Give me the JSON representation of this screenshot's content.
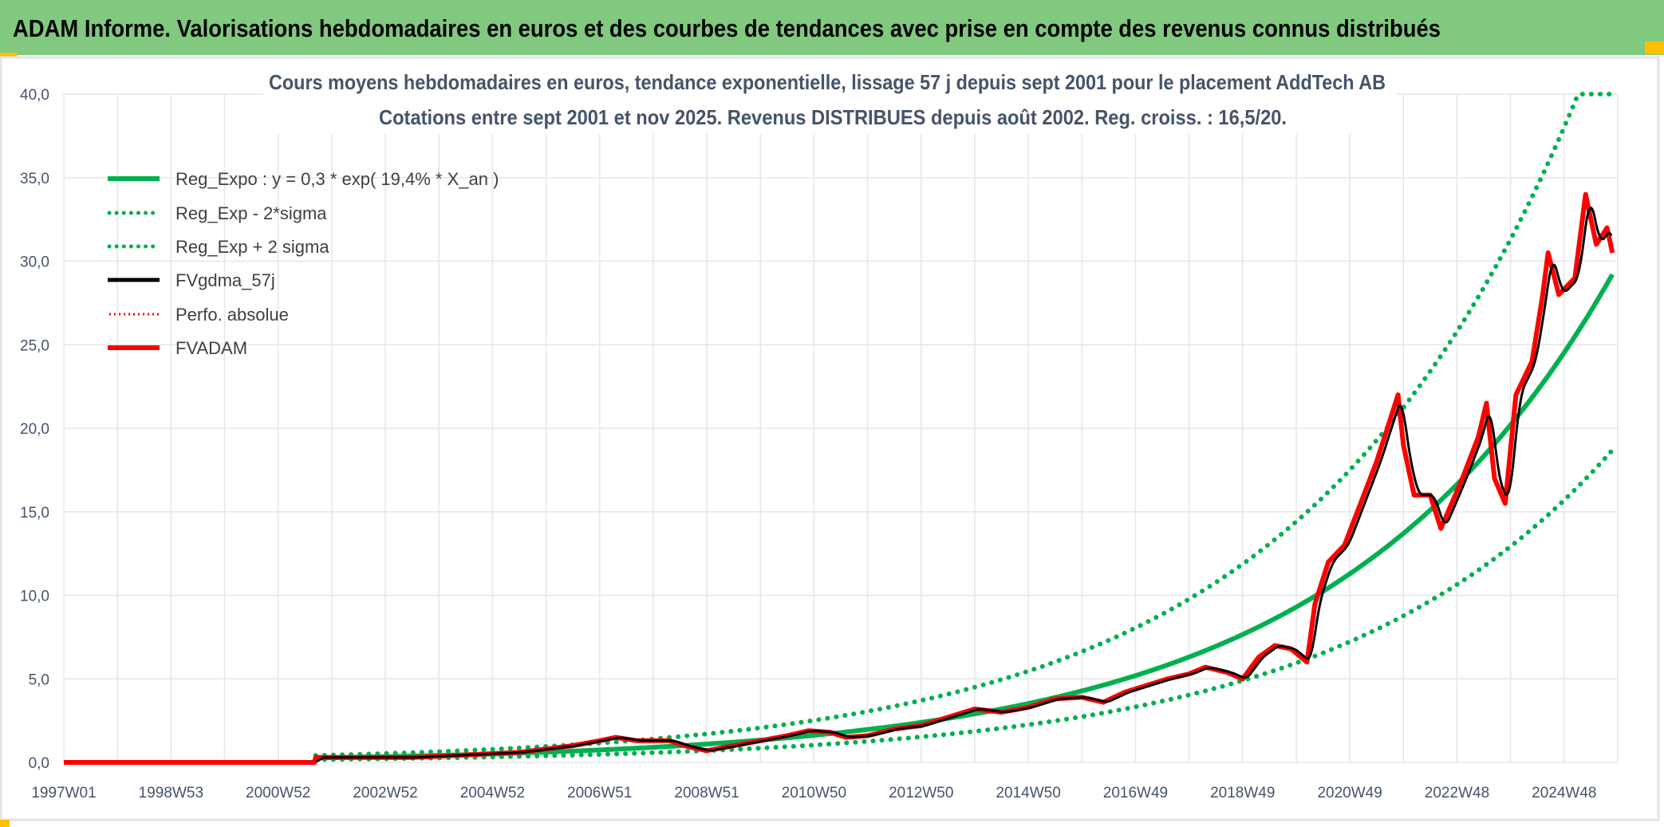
{
  "header": {
    "title": "ADAM Informe. Valorisations hebdomadaires en euros et des courbes de tendances avec prise en compte des revenus connus distribués"
  },
  "colors": {
    "header_bg": "#80c97f",
    "reg": "#00b050",
    "price": "#ff0000",
    "smooth": "#000000",
    "accent": "#ffc000"
  },
  "chart_data": {
    "type": "line",
    "title": [
      "Cours moyens hebdomadaires en euros, tendance exponentielle, lissage 57 j depuis sept 2001 pour le placement AddTech AB",
      "Cotations entre sept 2001 et nov 2025. Revenus DISTRIBUES depuis août 2002. Reg. croiss. : 16,5/20."
    ],
    "xlabel": "",
    "ylabel": "",
    "ylim": [
      0,
      40
    ],
    "xlim": [
      1997.0,
      2026.0
    ],
    "yticks": [
      "0,0",
      "5,0",
      "10,0",
      "15,0",
      "20,0",
      "25,0",
      "30,0",
      "35,0",
      "40,0"
    ],
    "xticks": [
      {
        "label": "1997W01",
        "x": 1997.0
      },
      {
        "label": "1998W53",
        "x": 1999.0
      },
      {
        "label": "2000W52",
        "x": 2001.0
      },
      {
        "label": "2002W52",
        "x": 2003.0
      },
      {
        "label": "2004W52",
        "x": 2005.0
      },
      {
        "label": "2006W51",
        "x": 2007.0
      },
      {
        "label": "2008W51",
        "x": 2009.0
      },
      {
        "label": "2010W50",
        "x": 2011.0
      },
      {
        "label": "2012W50",
        "x": 2013.0
      },
      {
        "label": "2014W50",
        "x": 2015.0
      },
      {
        "label": "2016W49",
        "x": 2017.0
      },
      {
        "label": "2018W49",
        "x": 2019.0
      },
      {
        "label": "2020W49",
        "x": 2021.0
      },
      {
        "label": "2022W48",
        "x": 2023.0
      },
      {
        "label": "2024W48",
        "x": 2025.0
      }
    ],
    "grid": true,
    "legend_position": "top-left",
    "regression": {
      "a": 0.3,
      "rate": 0.194,
      "t0": 2002.3,
      "start": 2001.7,
      "end": 2025.9,
      "minus2sigma_factor": 0.64,
      "plus2sigma_factor": 1.55
    },
    "series": [
      {
        "name": "Reg_Expo : y = 0,3 * exp( 19,4% *  X_an )",
        "style": "solid-green"
      },
      {
        "name": "Reg_Exp - 2*sigma",
        "style": "dotted-green"
      },
      {
        "name": "Reg_Exp + 2 sigma",
        "style": "dotted-green"
      },
      {
        "name": "FVgdma_57j",
        "style": "solid-black"
      },
      {
        "name": "Perfo. absolue",
        "style": "dotted-red"
      },
      {
        "name": "FVADAM",
        "style": "solid-red",
        "points": [
          [
            1997.0,
            0
          ],
          [
            2001.68,
            0
          ],
          [
            2001.7,
            0.3
          ],
          [
            2002.5,
            0.3
          ],
          [
            2003.5,
            0.3
          ],
          [
            2004.5,
            0.45
          ],
          [
            2005.5,
            0.6
          ],
          [
            2006.0,
            0.8
          ],
          [
            2006.5,
            1.0
          ],
          [
            2007.0,
            1.3
          ],
          [
            2007.3,
            1.5
          ],
          [
            2007.7,
            1.3
          ],
          [
            2008.3,
            1.3
          ],
          [
            2008.7,
            0.9
          ],
          [
            2009.0,
            0.7
          ],
          [
            2009.5,
            1.0
          ],
          [
            2010.0,
            1.3
          ],
          [
            2010.5,
            1.6
          ],
          [
            2010.9,
            1.9
          ],
          [
            2011.3,
            1.8
          ],
          [
            2011.6,
            1.5
          ],
          [
            2012.0,
            1.6
          ],
          [
            2012.5,
            2.0
          ],
          [
            2013.0,
            2.2
          ],
          [
            2013.5,
            2.7
          ],
          [
            2014.0,
            3.2
          ],
          [
            2014.5,
            3.0
          ],
          [
            2015.0,
            3.3
          ],
          [
            2015.5,
            3.8
          ],
          [
            2016.0,
            3.9
          ],
          [
            2016.4,
            3.6
          ],
          [
            2016.8,
            4.2
          ],
          [
            2017.2,
            4.6
          ],
          [
            2017.6,
            5.0
          ],
          [
            2018.0,
            5.3
          ],
          [
            2018.3,
            5.7
          ],
          [
            2018.7,
            5.4
          ],
          [
            2019.0,
            5.0
          ],
          [
            2019.3,
            6.3
          ],
          [
            2019.6,
            7.0
          ],
          [
            2019.9,
            6.8
          ],
          [
            2020.2,
            6.0
          ],
          [
            2020.35,
            9.5
          ],
          [
            2020.6,
            12.0
          ],
          [
            2020.9,
            13.0
          ],
          [
            2021.2,
            15.5
          ],
          [
            2021.5,
            18.0
          ],
          [
            2021.7,
            20.0
          ],
          [
            2021.9,
            22.0
          ],
          [
            2022.0,
            19.0
          ],
          [
            2022.2,
            16.0
          ],
          [
            2022.5,
            16.0
          ],
          [
            2022.7,
            14.0
          ],
          [
            2022.9,
            15.5
          ],
          [
            2023.1,
            17.0
          ],
          [
            2023.4,
            19.5
          ],
          [
            2023.55,
            21.5
          ],
          [
            2023.7,
            17.0
          ],
          [
            2023.9,
            15.5
          ],
          [
            2024.1,
            22.0
          ],
          [
            2024.4,
            24.0
          ],
          [
            2024.6,
            28.0
          ],
          [
            2024.7,
            30.5
          ],
          [
            2024.9,
            28.0
          ],
          [
            2025.2,
            29.0
          ],
          [
            2025.4,
            34.0
          ],
          [
            2025.6,
            31.0
          ],
          [
            2025.8,
            32.0
          ],
          [
            2025.9,
            30.5
          ]
        ]
      }
    ]
  }
}
